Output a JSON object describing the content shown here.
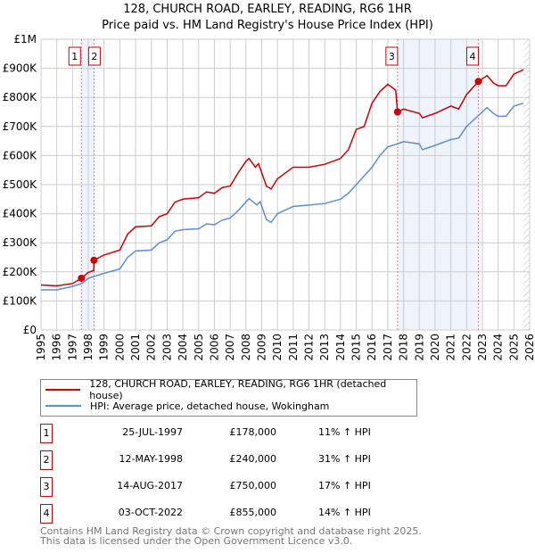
{
  "title": "128, CHURCH ROAD, EARLEY, READING, RG6 1HR",
  "subtitle": "Price paid vs. HM Land Registry's House Price Index (HPI)",
  "chart_data": {
    "type": "line",
    "ylim": [
      0,
      1000000
    ],
    "xlim": [
      1995,
      2026
    ],
    "yticks": [
      {
        "v": 0,
        "label": "£0"
      },
      {
        "v": 100000,
        "label": "£100K"
      },
      {
        "v": 200000,
        "label": "£200K"
      },
      {
        "v": 300000,
        "label": "£300K"
      },
      {
        "v": 400000,
        "label": "£400K"
      },
      {
        "v": 500000,
        "label": "£500K"
      },
      {
        "v": 600000,
        "label": "£600K"
      },
      {
        "v": 700000,
        "label": "£700K"
      },
      {
        "v": 800000,
        "label": "£800K"
      },
      {
        "v": 900000,
        "label": "£900K"
      },
      {
        "v": 1000000,
        "label": "£1M"
      }
    ],
    "xticks": [
      "1995",
      "1996",
      "1997",
      "1998",
      "1999",
      "2000",
      "2001",
      "2002",
      "2003",
      "2004",
      "2005",
      "2006",
      "2007",
      "2008",
      "2009",
      "2010",
      "2011",
      "2012",
      "2013",
      "2014",
      "2015",
      "2016",
      "2017",
      "2018",
      "2019",
      "2020",
      "2021",
      "2022",
      "2023",
      "2024",
      "2025",
      "2026"
    ],
    "grid": true,
    "series": [
      {
        "name": "128, CHURCH ROAD, EARLEY, READING, RG6 1HR (detached house)",
        "color": "#cc0000",
        "x": [
          1995,
          1996,
          1997,
          1997.56,
          1998,
          1998.35,
          1998.36,
          1999,
          2000,
          2000.5,
          2001,
          2002,
          2002.5,
          2003,
          2003.5,
          2004,
          2005,
          2005.5,
          2006,
          2006.5,
          2007,
          2007.5,
          2008,
          2008.2,
          2008.6,
          2008.8,
          2009.3,
          2009.6,
          2010,
          2011,
          2012,
          2013,
          2014,
          2014.5,
          2015,
          2015.5,
          2016,
          2016.5,
          2017,
          2017.5,
          2017.62,
          2018,
          2019,
          2019.2,
          2020,
          2021,
          2021.5,
          2022,
          2022.75,
          2023.3,
          2023.7,
          2024,
          2024.5,
          2025,
          2025.6
        ],
        "y": [
          155000,
          152000,
          160000,
          178000,
          198000,
          205000,
          240000,
          258000,
          275000,
          330000,
          355000,
          358000,
          390000,
          400000,
          440000,
          450000,
          455000,
          475000,
          470000,
          490000,
          495000,
          540000,
          580000,
          590000,
          560000,
          572000,
          495000,
          485000,
          520000,
          560000,
          560000,
          570000,
          590000,
          620000,
          690000,
          700000,
          780000,
          820000,
          845000,
          825000,
          750000,
          760000,
          745000,
          730000,
          745000,
          770000,
          760000,
          810000,
          855000,
          875000,
          850000,
          840000,
          840000,
          880000,
          895000
        ]
      },
      {
        "name": "HPI: Average price, detached house, Wokingham",
        "color": "#5b8fd4",
        "x": [
          1995,
          1996,
          1997,
          1997.6,
          1998,
          1999,
          2000,
          2000.5,
          2001,
          2002,
          2002.5,
          2003,
          2003.5,
          2004,
          2005,
          2005.5,
          2006,
          2006.5,
          2007,
          2007.5,
          2008,
          2008.2,
          2008.7,
          2008.9,
          2009.3,
          2009.6,
          2010,
          2011,
          2012,
          2013,
          2014,
          2014.5,
          2015,
          2015.5,
          2016,
          2016.5,
          2017,
          2017.6,
          2018,
          2019,
          2019.2,
          2020,
          2021,
          2021.5,
          2022,
          2022.8,
          2023.3,
          2023.7,
          2024,
          2024.5,
          2025,
          2025.6
        ],
        "y": [
          138000,
          138000,
          150000,
          160000,
          178000,
          195000,
          210000,
          250000,
          272000,
          275000,
          300000,
          310000,
          340000,
          345000,
          348000,
          365000,
          362000,
          378000,
          385000,
          410000,
          440000,
          452000,
          430000,
          442000,
          380000,
          370000,
          400000,
          425000,
          430000,
          435000,
          450000,
          470000,
          500000,
          530000,
          560000,
          600000,
          630000,
          640000,
          648000,
          640000,
          620000,
          635000,
          655000,
          660000,
          700000,
          740000,
          765000,
          745000,
          735000,
          735000,
          770000,
          780000
        ]
      }
    ],
    "sales": [
      {
        "id": "1",
        "date": "25-JUL-1997",
        "price": "£178,000",
        "hpi": "11% ↑ HPI",
        "x": 1997.56,
        "y": 178000
      },
      {
        "id": "2",
        "date": "12-MAY-1998",
        "price": "£240,000",
        "hpi": "31% ↑ HPI",
        "x": 1998.36,
        "y": 240000
      },
      {
        "id": "3",
        "date": "14-AUG-2017",
        "price": "£750,000",
        "hpi": "17% ↑ HPI",
        "x": 2017.62,
        "y": 750000
      },
      {
        "id": "4",
        "date": "03-OCT-2022",
        "price": "£855,000",
        "hpi": "14% ↑ HPI",
        "x": 2022.75,
        "y": 855000
      }
    ],
    "shaded": [
      [
        1997.56,
        1998.36
      ],
      [
        2017.62,
        2022.75
      ]
    ],
    "forecast_from": 2025.6
  },
  "legend": {
    "property": "128, CHURCH ROAD, EARLEY, READING, RG6 1HR (detached house)",
    "hpi": "HPI: Average price, detached house, Wokingham"
  },
  "footer": {
    "line1": "Contains HM Land Registry data © Crown copyright and database right 2025.",
    "line2": "This data is licensed under the Open Government Licence v3.0."
  }
}
